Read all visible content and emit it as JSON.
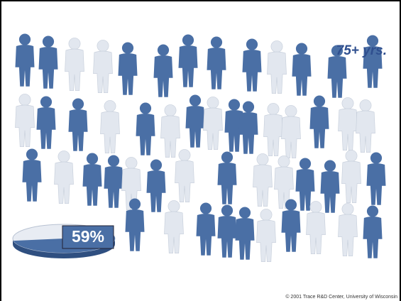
{
  "chart_data": {
    "type": "pie",
    "title": "75+ yrs.",
    "values": [
      59
    ],
    "value_labels": [
      "59%"
    ],
    "color": "#4a6fa5",
    "note": "© 2001 Trace R&D Center, University of Wisconsin"
  }
}
